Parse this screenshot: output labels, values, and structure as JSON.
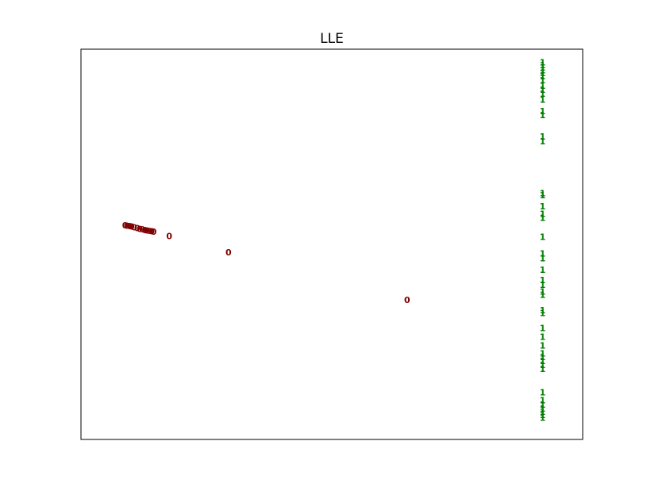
{
  "chart_data": {
    "type": "scatter",
    "title": "LLE",
    "xlabel": "",
    "ylabel": "",
    "xlim": [
      0,
      1
    ],
    "ylim": [
      0,
      1
    ],
    "grid": false,
    "ticks_visible": false,
    "series": [
      {
        "name": "0",
        "color": "#7f0000",
        "points": [
          {
            "x": 0.088,
            "y": 0.548
          },
          {
            "x": 0.092,
            "y": 0.547
          },
          {
            "x": 0.097,
            "y": 0.546
          },
          {
            "x": 0.101,
            "y": 0.545
          },
          {
            "x": 0.106,
            "y": 0.543
          },
          {
            "x": 0.112,
            "y": 0.541
          },
          {
            "x": 0.117,
            "y": 0.539
          },
          {
            "x": 0.122,
            "y": 0.538
          },
          {
            "x": 0.127,
            "y": 0.536
          },
          {
            "x": 0.131,
            "y": 0.535
          },
          {
            "x": 0.136,
            "y": 0.534
          },
          {
            "x": 0.141,
            "y": 0.533
          },
          {
            "x": 0.145,
            "y": 0.532
          },
          {
            "x": 0.176,
            "y": 0.52
          },
          {
            "x": 0.294,
            "y": 0.479
          },
          {
            "x": 0.65,
            "y": 0.357
          }
        ]
      },
      {
        "name": "1",
        "color": "#007f00",
        "points": [
          {
            "x": 0.92,
            "y": 0.965
          },
          {
            "x": 0.92,
            "y": 0.958
          },
          {
            "x": 0.92,
            "y": 0.952
          },
          {
            "x": 0.92,
            "y": 0.945
          },
          {
            "x": 0.92,
            "y": 0.938
          },
          {
            "x": 0.92,
            "y": 0.93
          },
          {
            "x": 0.92,
            "y": 0.92
          },
          {
            "x": 0.92,
            "y": 0.905
          },
          {
            "x": 0.92,
            "y": 0.895
          },
          {
            "x": 0.92,
            "y": 0.885
          },
          {
            "x": 0.92,
            "y": 0.87
          },
          {
            "x": 0.92,
            "y": 0.84
          },
          {
            "x": 0.92,
            "y": 0.83
          },
          {
            "x": 0.92,
            "y": 0.775
          },
          {
            "x": 0.92,
            "y": 0.763
          },
          {
            "x": 0.92,
            "y": 0.63
          },
          {
            "x": 0.92,
            "y": 0.625
          },
          {
            "x": 0.92,
            "y": 0.597
          },
          {
            "x": 0.92,
            "y": 0.577
          },
          {
            "x": 0.92,
            "y": 0.567
          },
          {
            "x": 0.92,
            "y": 0.518
          },
          {
            "x": 0.92,
            "y": 0.476
          },
          {
            "x": 0.92,
            "y": 0.463
          },
          {
            "x": 0.92,
            "y": 0.434
          },
          {
            "x": 0.92,
            "y": 0.408
          },
          {
            "x": 0.92,
            "y": 0.395
          },
          {
            "x": 0.92,
            "y": 0.378
          },
          {
            "x": 0.92,
            "y": 0.37
          },
          {
            "x": 0.92,
            "y": 0.33
          },
          {
            "x": 0.92,
            "y": 0.323
          },
          {
            "x": 0.92,
            "y": 0.285
          },
          {
            "x": 0.92,
            "y": 0.262
          },
          {
            "x": 0.92,
            "y": 0.24
          },
          {
            "x": 0.92,
            "y": 0.22
          },
          {
            "x": 0.92,
            "y": 0.21
          },
          {
            "x": 0.92,
            "y": 0.2
          },
          {
            "x": 0.92,
            "y": 0.19
          },
          {
            "x": 0.92,
            "y": 0.18
          },
          {
            "x": 0.92,
            "y": 0.12
          },
          {
            "x": 0.92,
            "y": 0.1
          },
          {
            "x": 0.92,
            "y": 0.088
          },
          {
            "x": 0.92,
            "y": 0.078
          },
          {
            "x": 0.92,
            "y": 0.07
          },
          {
            "x": 0.92,
            "y": 0.062
          },
          {
            "x": 0.92,
            "y": 0.055
          }
        ]
      }
    ]
  }
}
